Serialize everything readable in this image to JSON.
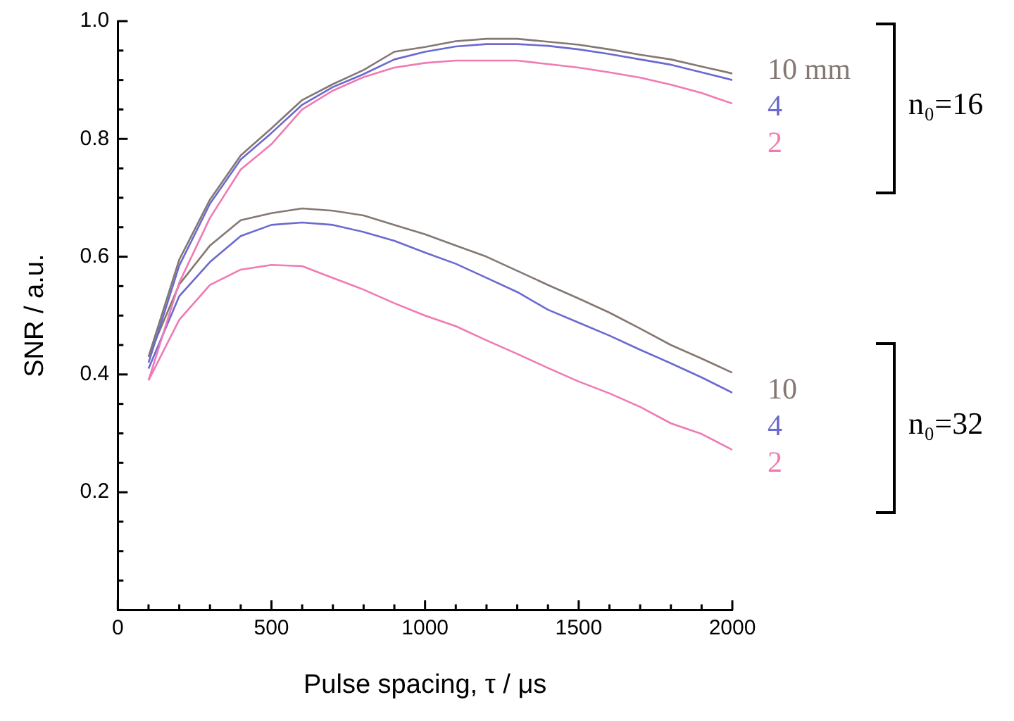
{
  "chart_data": {
    "type": "line",
    "xlabel": "Pulse spacing, τ / μs",
    "ylabel": "SNR / a.u.",
    "x": [
      100,
      200,
      300,
      400,
      500,
      600,
      700,
      800,
      900,
      1000,
      1100,
      1200,
      1300,
      1400,
      1500,
      1600,
      1700,
      1800,
      1900,
      2000
    ],
    "series": [
      {
        "name": "10 mm",
        "color": "#847873",
        "values": [
          0.43,
          0.595,
          0.697,
          0.772,
          0.818,
          0.866,
          0.893,
          0.917,
          0.948,
          0.956,
          0.966,
          0.97,
          0.97,
          0.965,
          0.96,
          0.952,
          0.943,
          0.935,
          0.923,
          0.911
        ]
      },
      {
        "name": "4",
        "color": "#6a6ad0",
        "values": [
          0.42,
          0.585,
          0.69,
          0.765,
          0.81,
          0.858,
          0.888,
          0.91,
          0.935,
          0.948,
          0.957,
          0.961,
          0.961,
          0.958,
          0.952,
          0.944,
          0.935,
          0.926,
          0.913,
          0.9
        ]
      },
      {
        "name": "2",
        "color": "#f07ab4",
        "values": [
          0.39,
          0.556,
          0.666,
          0.748,
          0.791,
          0.85,
          0.882,
          0.905,
          0.921,
          0.929,
          0.933,
          0.933,
          0.933,
          0.927,
          0.921,
          0.913,
          0.904,
          0.892,
          0.878,
          0.86
        ]
      },
      {
        "name": "10",
        "color": "#847873",
        "values": [
          0.43,
          0.553,
          0.619,
          0.662,
          0.674,
          0.682,
          0.678,
          0.67,
          0.654,
          0.638,
          0.619,
          0.6,
          0.576,
          0.552,
          0.529,
          0.505,
          0.478,
          0.45,
          0.427,
          0.403
        ]
      },
      {
        "name": "4",
        "color": "#6a6ad0",
        "values": [
          0.41,
          0.533,
          0.591,
          0.635,
          0.654,
          0.658,
          0.654,
          0.642,
          0.627,
          0.607,
          0.588,
          0.564,
          0.54,
          0.51,
          0.488,
          0.466,
          0.442,
          0.419,
          0.395,
          0.369
        ]
      },
      {
        "name": "2",
        "color": "#f07ab4",
        "values": [
          0.39,
          0.493,
          0.552,
          0.578,
          0.586,
          0.584,
          0.564,
          0.544,
          0.521,
          0.5,
          0.482,
          0.458,
          0.435,
          0.411,
          0.388,
          0.368,
          0.345,
          0.317,
          0.299,
          0.272
        ]
      }
    ],
    "annotations": [
      "n₀=16",
      "n₀=32"
    ],
    "xlim": [
      0,
      2000
    ],
    "xticks": [
      0,
      {
        "value": 100,
        "label": null
      },
      {
        "value": 200,
        "label": null
      },
      {
        "value": 300,
        "label": null
      },
      {
        "value": 400,
        "label": null
      },
      500,
      {
        "value": 600,
        "label": null
      },
      {
        "value": 700,
        "label": null
      },
      {
        "value": 800,
        "label": null
      },
      {
        "value": 900,
        "label": null
      },
      1000,
      {
        "value": 1100,
        "label": null
      },
      {
        "value": 1200,
        "label": null
      },
      {
        "value": 1300,
        "label": null
      },
      {
        "value": 1400,
        "label": null
      },
      1500,
      {
        "value": 1600,
        "label": null
      },
      {
        "value": 1700,
        "label": null
      },
      {
        "value": 1800,
        "label": null
      },
      {
        "value": 1900,
        "label": null
      },
      2000
    ],
    "ylim": [
      0,
      1
    ],
    "yticks": [
      {
        "value": 0,
        "label": null
      },
      {
        "value": 0.05,
        "label": null
      },
      {
        "value": 0.1,
        "label": null
      },
      {
        "value": 0.15,
        "label": null
      },
      0.2,
      {
        "value": 0.25,
        "label": null
      },
      {
        "value": 0.3,
        "label": null
      },
      {
        "value": 0.35,
        "label": null
      },
      0.4,
      {
        "value": 0.45,
        "label": null
      },
      {
        "value": 0.5,
        "label": null
      },
      {
        "value": 0.55,
        "label": null
      },
      0.6,
      {
        "value": 0.65,
        "label": null
      },
      {
        "value": 0.7,
        "label": null
      },
      {
        "value": 0.75,
        "label": null
      },
      0.8,
      {
        "value": 0.85,
        "label": null
      },
      {
        "value": 0.9,
        "label": null
      },
      {
        "value": 0.95,
        "label": null
      },
      {
        "value": 1,
        "label": "1.0"
      }
    ],
    "grid": false,
    "legend": false,
    "marker": "none",
    "line_style": "solid"
  }
}
